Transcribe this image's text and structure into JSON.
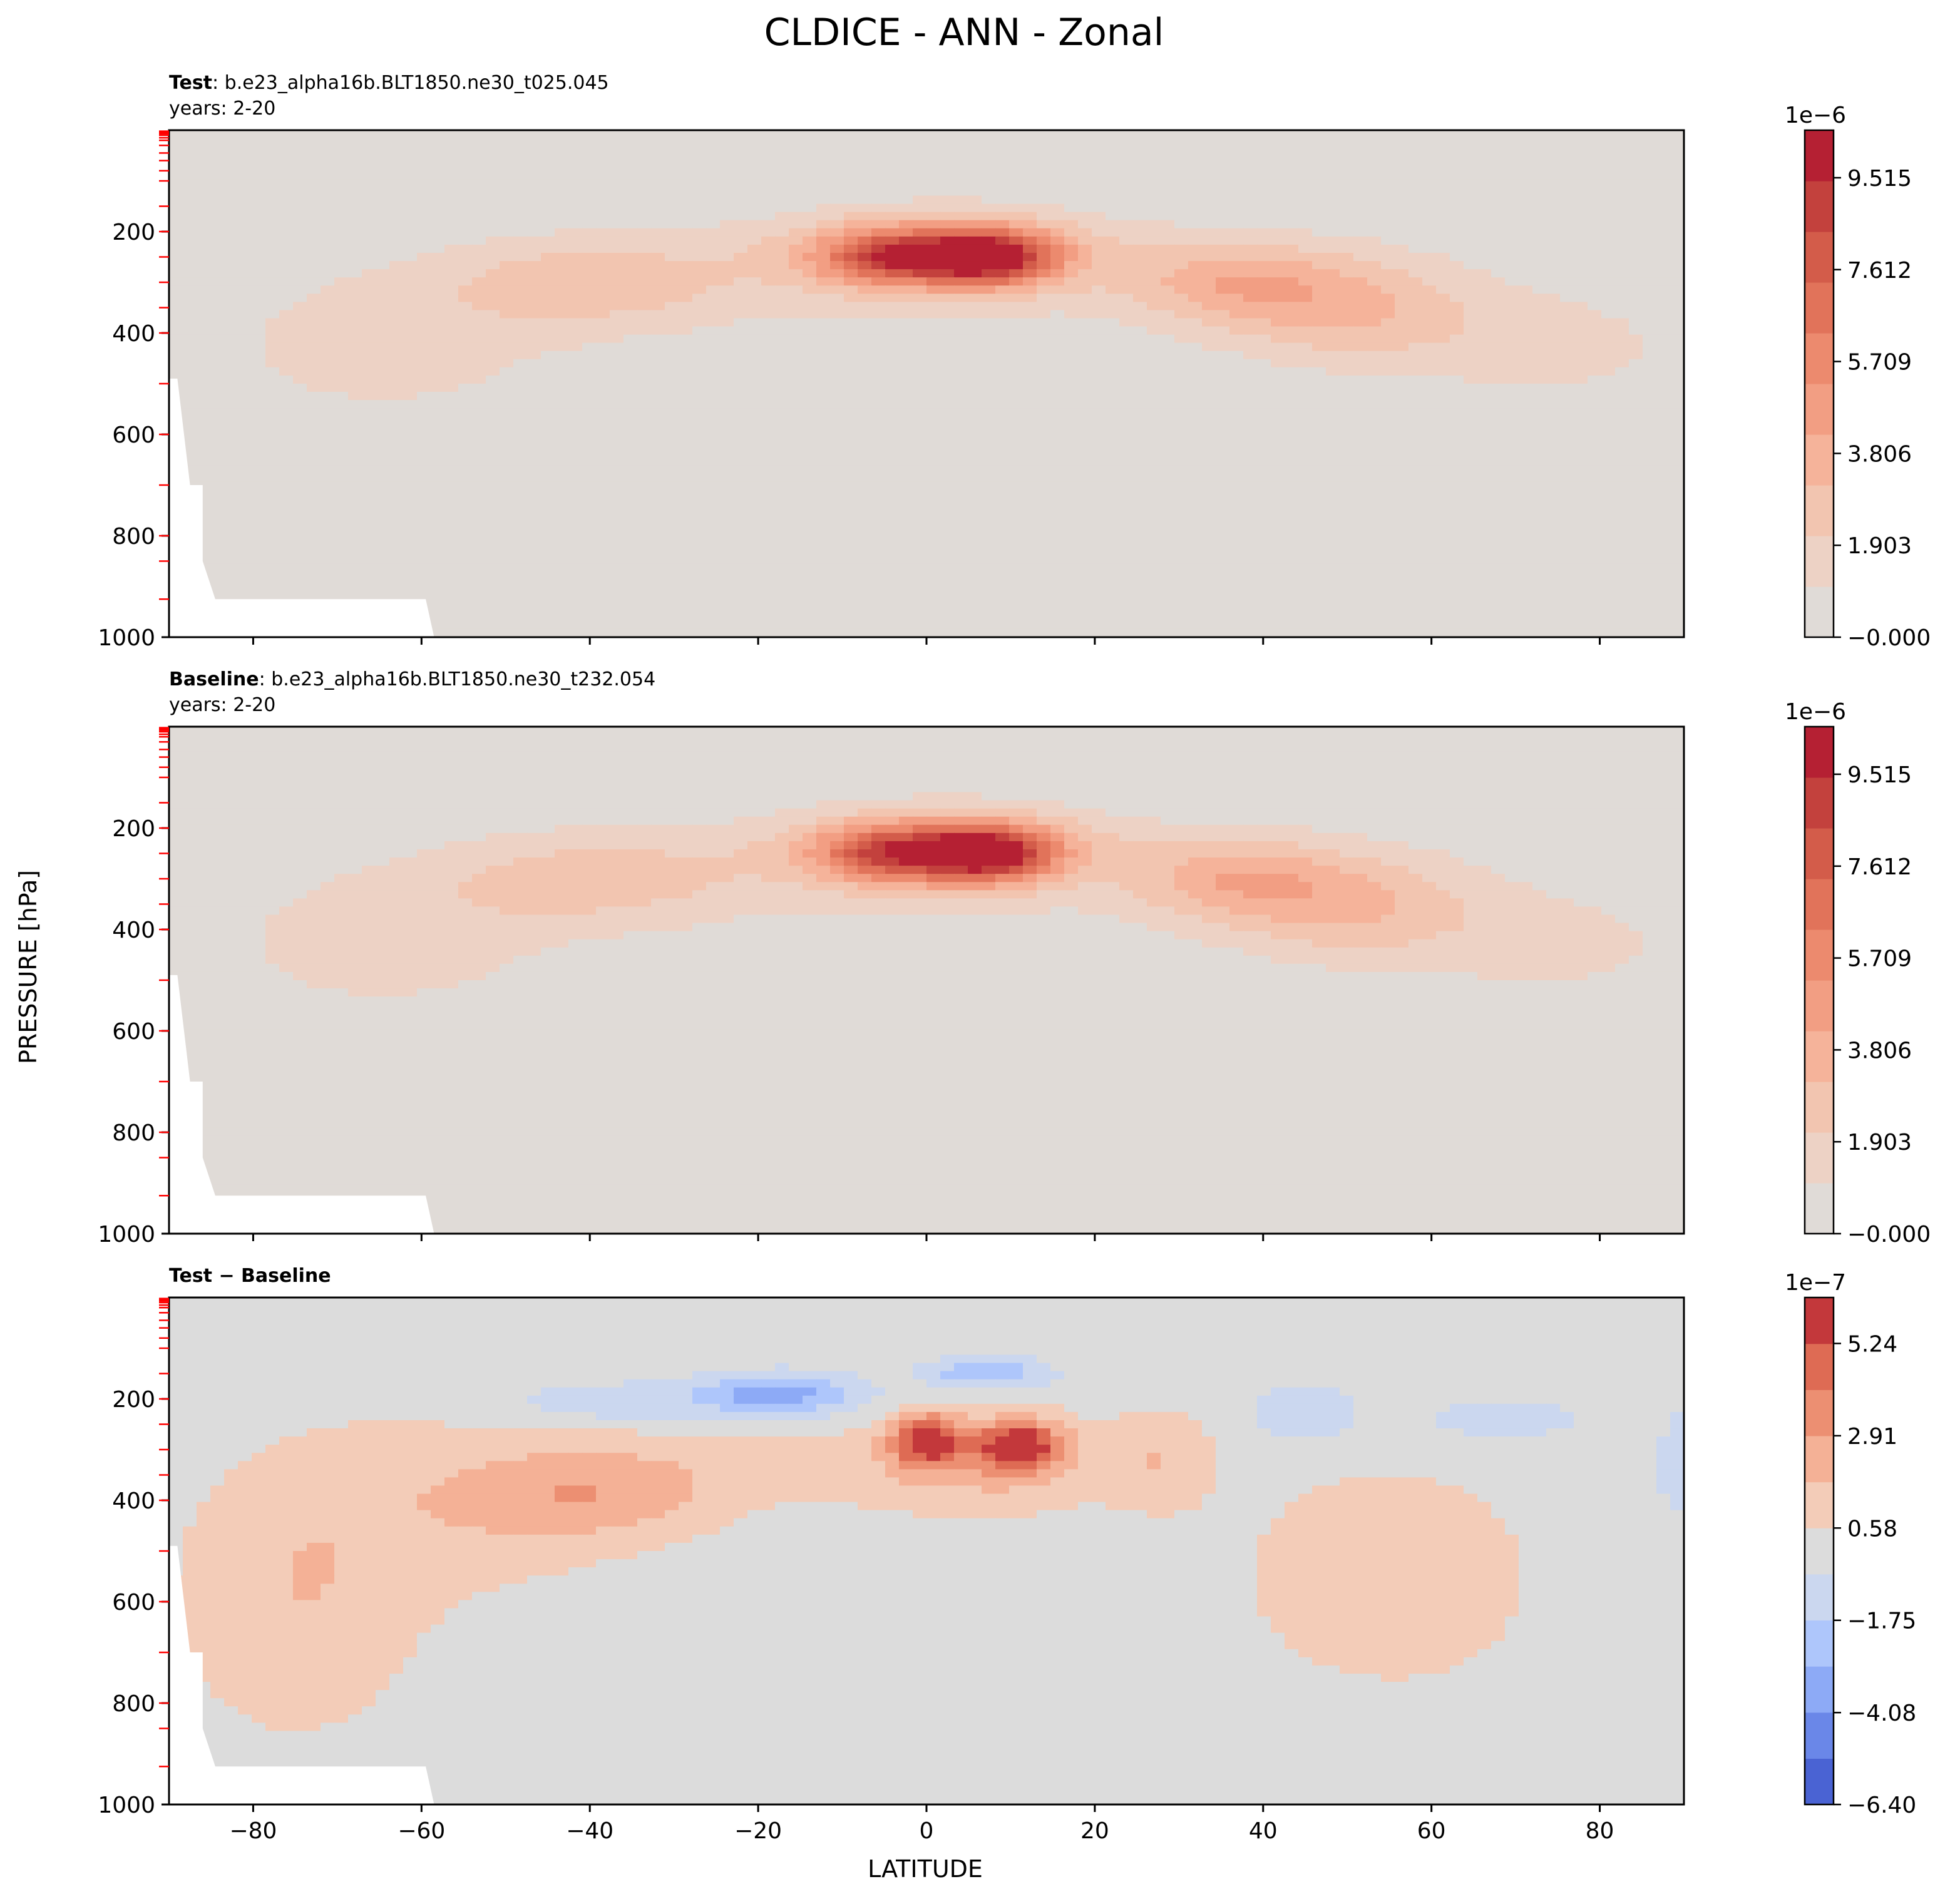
{
  "figure": {
    "title": "CLDICE - ANN - Zonal",
    "xlabel": "LATITUDE",
    "ylabel": "PRESSURE [hPa]"
  },
  "chart_data": [
    {
      "type": "heatmap",
      "panel": "test",
      "label_bold": "Test",
      "label_rest": ": b.e23_alpha16b.BLT1850.ne30_t025.045",
      "subtitle": "years: 2-20",
      "xlim": [
        -90,
        90
      ],
      "ylim": [
        1000,
        0
      ],
      "xticks": [
        -80,
        -60,
        -40,
        -20,
        0,
        20,
        40,
        60,
        80
      ],
      "yticks": [
        200,
        400,
        600,
        800,
        1000
      ],
      "colorbar": {
        "exponent": "1e−6",
        "tick_labels": [
          "9.515",
          "7.612",
          "5.709",
          "3.806",
          "1.903",
          "−0.000"
        ],
        "tick_values": [
          9.515,
          7.612,
          5.709,
          3.806,
          1.903,
          0.0
        ],
        "range": [
          0,
          10.5
        ],
        "colors": [
          "#e0dbd7",
          "#edd2c5",
          "#f2c5b0",
          "#f5b39a",
          "#f29e83",
          "#ec8a6e",
          "#e1735a",
          "#d35c4a",
          "#c3413d",
          "#b52033"
        ]
      },
      "features": [
        {
          "name": "upper-tropical-max",
          "lat": 7,
          "plev": 250,
          "level": 10
        },
        {
          "name": "upper-tropical-secondary",
          "lat": -4,
          "plev": 250,
          "level": 8
        },
        {
          "name": "sh-midlat-band",
          "lat": -40,
          "plev": 300,
          "level": 3
        },
        {
          "name": "nh-midlat-band",
          "lat": 36,
          "plev": 300,
          "level": 5
        }
      ]
    },
    {
      "type": "heatmap",
      "panel": "baseline",
      "label_bold": "Baseline",
      "label_rest": ": b.e23_alpha16b.BLT1850.ne30_t232.054",
      "subtitle": "years: 2-20",
      "xlim": [
        -90,
        90
      ],
      "ylim": [
        1000,
        0
      ],
      "xticks": [
        -80,
        -60,
        -40,
        -20,
        0,
        20,
        40,
        60,
        80
      ],
      "yticks": [
        200,
        400,
        600,
        800,
        1000
      ],
      "colorbar": {
        "exponent": "1e−6",
        "tick_labels": [
          "9.515",
          "7.612",
          "5.709",
          "3.806",
          "1.903",
          "−0.000"
        ],
        "tick_values": [
          9.515,
          7.612,
          5.709,
          3.806,
          1.903,
          0.0
        ],
        "range": [
          0,
          10.5
        ],
        "colors": [
          "#e0dbd7",
          "#edd2c5",
          "#f2c5b0",
          "#f5b39a",
          "#f29e83",
          "#ec8a6e",
          "#e1735a",
          "#d35c4a",
          "#c3413d",
          "#b52033"
        ]
      },
      "features": [
        {
          "name": "upper-tropical-max",
          "lat": 7,
          "plev": 250,
          "level": 10
        },
        {
          "name": "upper-tropical-secondary",
          "lat": -5,
          "plev": 250,
          "level": 8
        },
        {
          "name": "sh-midlat-band",
          "lat": -40,
          "plev": 300,
          "level": 3
        },
        {
          "name": "nh-midlat-band",
          "lat": 36,
          "plev": 300,
          "level": 5
        }
      ]
    },
    {
      "type": "heatmap",
      "panel": "difference",
      "label_bold": "Test − Baseline",
      "xlim": [
        -90,
        90
      ],
      "ylim": [
        1000,
        0
      ],
      "xticks": [
        -80,
        -60,
        -40,
        -20,
        0,
        20,
        40,
        60,
        80
      ],
      "xtick_labels": [
        "−80",
        "−60",
        "−40",
        "−20",
        "0",
        "20",
        "40",
        "60",
        "80"
      ],
      "yticks": [
        200,
        400,
        600,
        800,
        1000
      ],
      "colorbar": {
        "exponent": "1e−7",
        "tick_labels": [
          "5.24",
          "2.91",
          "0.58",
          "−1.75",
          "−4.08",
          "−6.40"
        ],
        "tick_values": [
          5.24,
          2.91,
          0.58,
          -1.75,
          -4.08,
          -6.4
        ],
        "range": [
          -6.4,
          6.4
        ],
        "colors": [
          "#4a63d3",
          "#6a87e8",
          "#8daaf6",
          "#aec6fb",
          "#cbd7ef",
          "#dcdcdc",
          "#f3ccb8",
          "#f4b196",
          "#ec8f72",
          "#de6b54",
          "#c3383b"
        ]
      },
      "features": [
        {
          "name": "positive-max-north",
          "lat": 11,
          "plev": 280,
          "level": "max"
        },
        {
          "name": "positive-max-south",
          "lat": 0,
          "plev": 270,
          "level": "max"
        },
        {
          "name": "negative-upper-sh",
          "lat": -15,
          "plev": 190,
          "level": -3
        },
        {
          "name": "positive-sh-midlat",
          "lat": -40,
          "plev": 400,
          "level": 2
        }
      ]
    }
  ]
}
